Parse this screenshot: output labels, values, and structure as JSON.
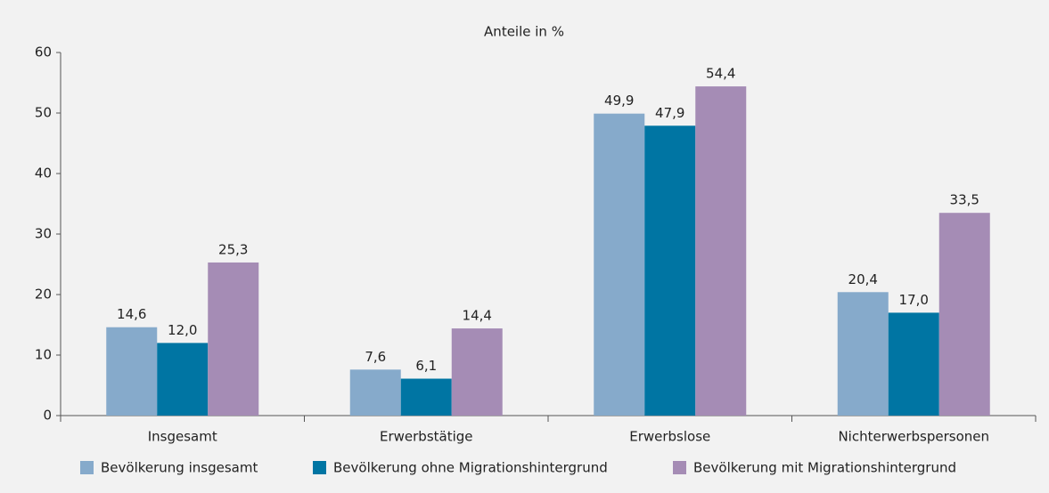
{
  "chart_data": {
    "type": "bar",
    "title": "Anteile in %",
    "categories": [
      "Insgesamt",
      "Erwerbstätige",
      "Erwerbslose",
      "Nichterwerbspersonen"
    ],
    "series": [
      {
        "name": "Bevölkerung insgesamt",
        "color": "#86aacb",
        "values": [
          14.6,
          7.6,
          49.9,
          20.4
        ],
        "value_labels": [
          "14,6",
          "7,6",
          "49,9",
          "20,4"
        ]
      },
      {
        "name": "Bevölkerung ohne Migrationshintergrund",
        "color": "#0075a3",
        "values": [
          12.0,
          6.1,
          47.9,
          17.0
        ],
        "value_labels": [
          "12,0",
          "6,1",
          "47,9",
          "17,0"
        ]
      },
      {
        "name": "Bevölkerung mit Migrationshintergrund",
        "color": "#a58cb5",
        "values": [
          25.3,
          14.4,
          54.4,
          33.5
        ],
        "value_labels": [
          "25,3",
          "14,4",
          "54,4",
          "33,5"
        ]
      }
    ],
    "ylim": [
      0,
      60
    ],
    "yticks": [
      0,
      10,
      20,
      30,
      40,
      50,
      60
    ],
    "grid": false,
    "legend": "bottom"
  }
}
